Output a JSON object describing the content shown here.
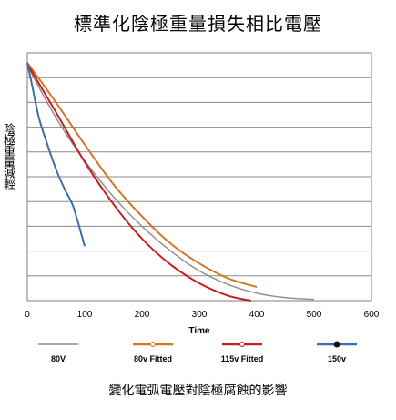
{
  "title": "標準化陰極重量損失相比電壓",
  "ylabel": "陰極重量減輕",
  "caption": "變化電弧電壓對陰極腐蝕的影響",
  "chart_data": {
    "type": "line",
    "xlabel": "Time",
    "xlim": [
      0,
      600
    ],
    "ylim": [
      0,
      10
    ],
    "xticks": [
      0,
      100,
      200,
      300,
      400,
      500,
      600
    ],
    "grid": true,
    "legend_position": "bottom",
    "series": [
      {
        "name": "80V",
        "color": "#8c8c8c",
        "marker": "none",
        "x": [
          0,
          30,
          60,
          100,
          150,
          200,
          250,
          300,
          350,
          400,
          450,
          500
        ],
        "y": [
          9.5,
          8.2,
          7.0,
          5.65,
          4.2,
          3.0,
          2.0,
          1.2,
          0.65,
          0.3,
          0.12,
          0.05
        ]
      },
      {
        "name": "80v Fitted",
        "color": "#d9731f",
        "marker": "circle",
        "x": [
          0,
          50,
          100,
          150,
          200,
          250,
          300,
          350,
          400
        ],
        "y": [
          9.6,
          8.0,
          6.3,
          4.7,
          3.4,
          2.3,
          1.5,
          0.9,
          0.55
        ]
      },
      {
        "name": "115v Fitted",
        "color": "#c81e1e",
        "marker": "circle",
        "x": [
          0,
          50,
          100,
          150,
          200,
          250,
          300,
          350,
          390
        ],
        "y": [
          9.55,
          7.6,
          5.6,
          3.9,
          2.5,
          1.45,
          0.7,
          0.2,
          0.0
        ]
      },
      {
        "name": "150v",
        "color": "#3a6fae",
        "marker": "dot",
        "x": [
          0,
          10,
          20,
          35,
          50,
          65,
          80,
          100
        ],
        "y": [
          9.6,
          8.5,
          7.4,
          6.3,
          5.3,
          4.5,
          3.8,
          2.2
        ]
      }
    ]
  }
}
